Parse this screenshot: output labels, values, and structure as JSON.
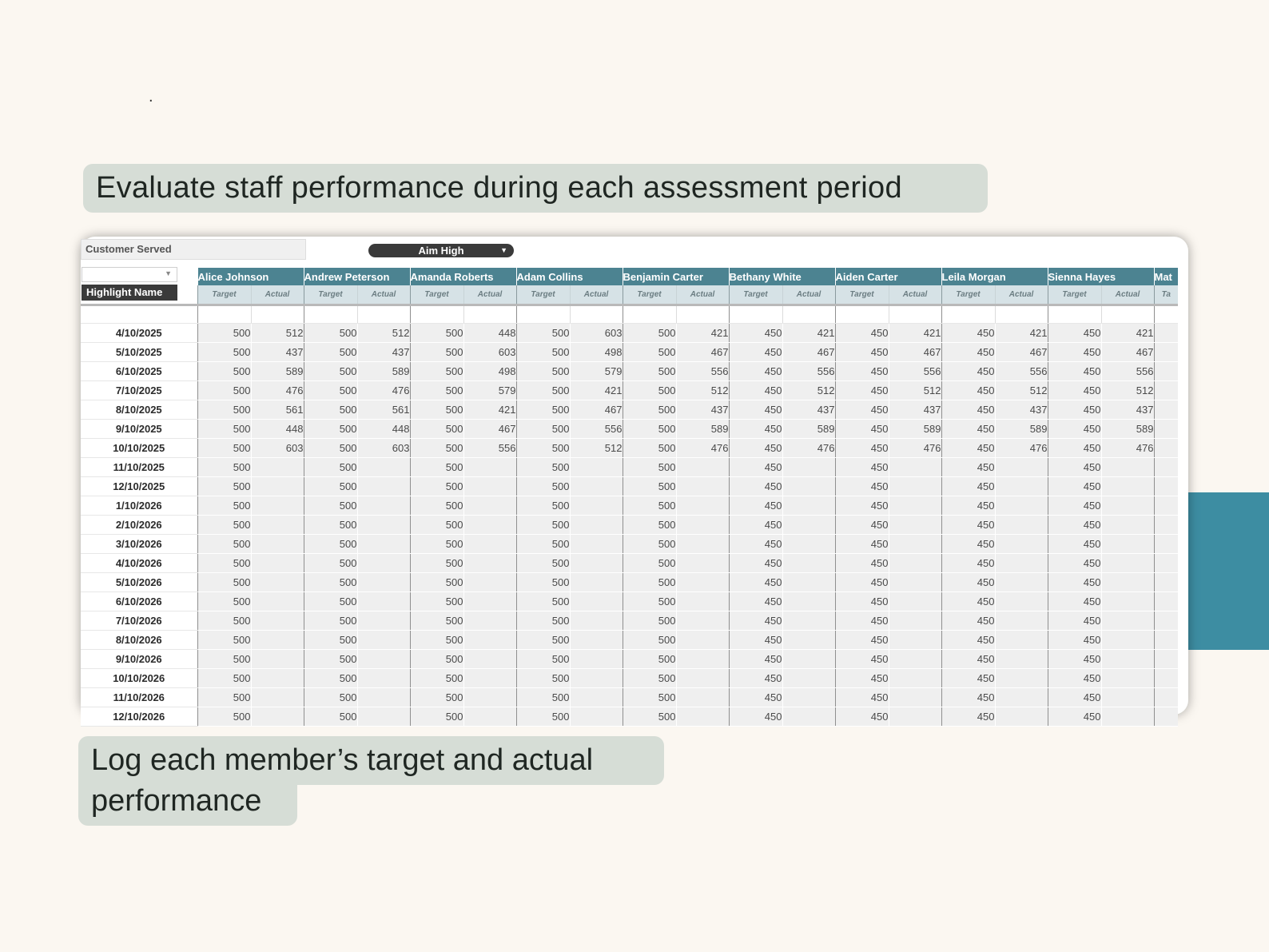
{
  "top_dot": ".",
  "headline": "Evaluate staff performance during each assessment period",
  "caption_line1": "Log each member’s target and actual",
  "caption_line2": "performance",
  "sheet": {
    "metric_label": "Customer Served",
    "mode_selector": "Aim High",
    "highlight_label": "Highlight Name",
    "sub_target": "Target",
    "sub_actual": "Actual",
    "members": [
      {
        "name": "Alice Johnson",
        "target": 500,
        "actuals": [
          512,
          437,
          589,
          476,
          561,
          448,
          603
        ]
      },
      {
        "name": "Andrew Peterson",
        "target": 500,
        "actuals": [
          512,
          437,
          589,
          476,
          561,
          448,
          603
        ]
      },
      {
        "name": "Amanda Roberts",
        "target": 500,
        "actuals": [
          448,
          603,
          498,
          579,
          421,
          467,
          556
        ]
      },
      {
        "name": "Adam Collins",
        "target": 500,
        "actuals": [
          603,
          498,
          579,
          421,
          467,
          556,
          512
        ]
      },
      {
        "name": "Benjamin Carter",
        "target": 500,
        "actuals": [
          421,
          467,
          556,
          512,
          437,
          589,
          476
        ]
      },
      {
        "name": "Bethany White",
        "target": 450,
        "actuals": [
          421,
          467,
          556,
          512,
          437,
          589,
          476
        ]
      },
      {
        "name": "Aiden Carter",
        "target": 450,
        "actuals": [
          421,
          467,
          556,
          512,
          437,
          589,
          476
        ]
      },
      {
        "name": "Leila Morgan",
        "target": 450,
        "actuals": [
          421,
          467,
          556,
          512,
          437,
          589,
          476
        ]
      },
      {
        "name": "Sienna Hayes",
        "target": 450,
        "actuals": [
          421,
          467,
          556,
          512,
          437,
          589,
          476
        ]
      },
      {
        "name": "Mat",
        "target": "",
        "actuals": [],
        "sub_target": "Ta"
      }
    ],
    "dates": [
      "4/10/2025",
      "5/10/2025",
      "6/10/2025",
      "7/10/2025",
      "8/10/2025",
      "9/10/2025",
      "10/10/2025",
      "11/10/2025",
      "12/10/2025",
      "1/10/2026",
      "2/10/2026",
      "3/10/2026",
      "4/10/2026",
      "5/10/2026",
      "6/10/2026",
      "7/10/2026",
      "8/10/2026",
      "9/10/2026",
      "10/10/2026",
      "11/10/2026",
      "12/10/2026"
    ]
  },
  "colors": {
    "teal_header": "#4c8391",
    "accent_block": "#3d8da2",
    "banner": "#d6ddd6",
    "background": "#fbf7f1"
  }
}
